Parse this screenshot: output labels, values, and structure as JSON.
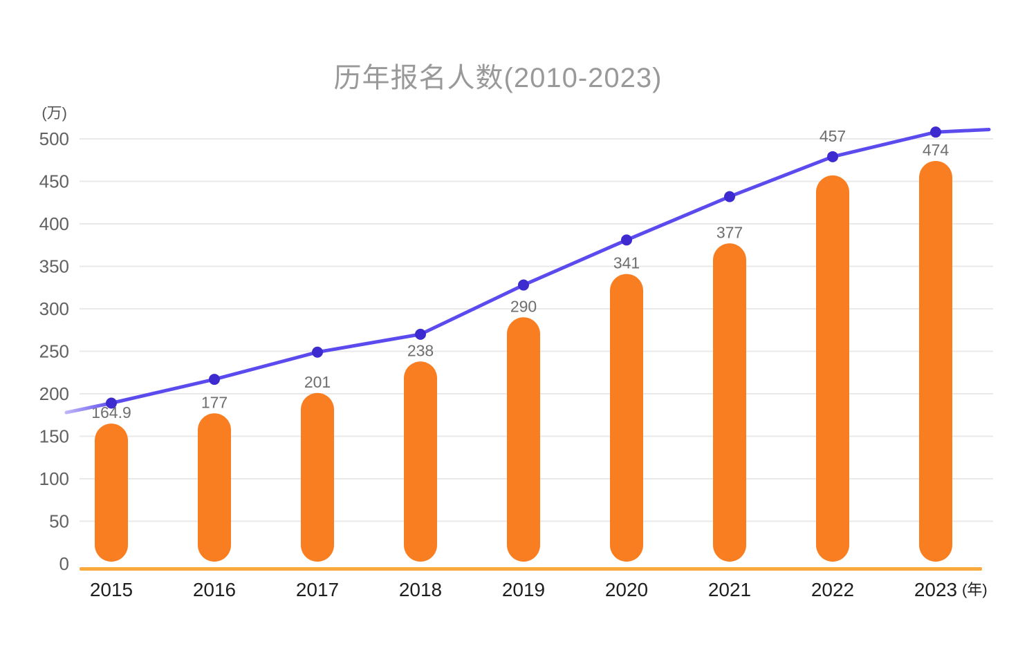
{
  "page": {
    "background": "#FFFFFF"
  },
  "chart_data": {
    "type": "bar",
    "title": "历年报名人数(2010-2023)",
    "categories": [
      "2015",
      "2016",
      "2017",
      "2018",
      "2019",
      "2020",
      "2021",
      "2022",
      "2023"
    ],
    "y_axis": {
      "unit_label": "(万)",
      "ticks": [
        0,
        50,
        100,
        150,
        200,
        250,
        300,
        350,
        400,
        450,
        500
      ],
      "ylim": [
        0,
        520
      ],
      "grid": true
    },
    "x_axis": {
      "unit_label": "(年)"
    },
    "series": [
      {
        "id": "bars",
        "type": "bar",
        "values": [
          164.9,
          177,
          201,
          238,
          290,
          341,
          377,
          457,
          474
        ],
        "data_labels": [
          "164.9",
          "177",
          "201",
          "238",
          "290",
          "341",
          "377",
          "457",
          "474"
        ],
        "color": "#F97E21"
      },
      {
        "id": "trend-line",
        "type": "line",
        "values": [
          189,
          217,
          249,
          270,
          328,
          381,
          432,
          479,
          508
        ],
        "edge_start_value": 178,
        "edge_end_value": 511,
        "color": "#5B4BEE",
        "tail_color": "#BFB5F9",
        "point_color": "#3D2BD0"
      }
    ],
    "colors": {
      "axis_line": "#F9A93C",
      "grid_line": "#E9E9E9",
      "title_text": "#999999",
      "y_tick_text": "#616161",
      "x_tick_text": "#1F1F1F",
      "bar_label_text": "#6E6E6E",
      "unit_text": "#555555"
    },
    "layout_hints": {
      "legend": "none",
      "label_y_offsets": [
        0,
        0,
        0,
        0,
        0,
        0,
        0,
        41,
        0
      ]
    }
  }
}
